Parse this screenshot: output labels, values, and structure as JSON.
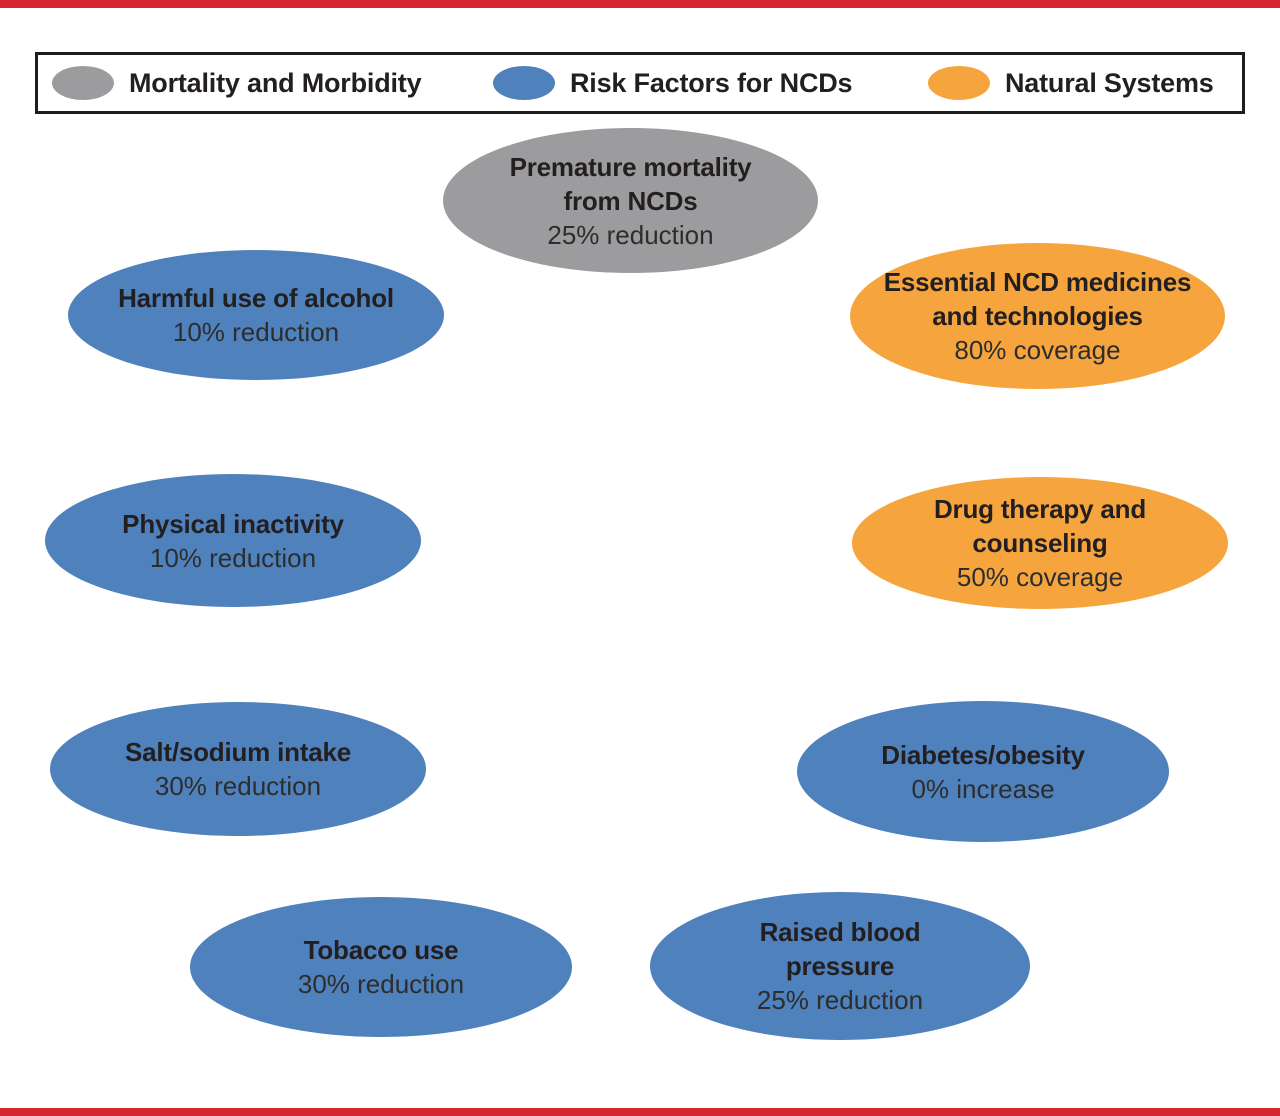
{
  "figure": {
    "background": "#ffffff",
    "rule_color": "#d7272f"
  },
  "legend": {
    "items": [
      {
        "label": "Mortality and Morbidity",
        "color": "#9c9c9e"
      },
      {
        "label": "Risk Factors for NCDs",
        "color": "#4f81bd"
      },
      {
        "label": "Natural Systems",
        "color": "#f6a53e"
      }
    ]
  },
  "nodes": [
    {
      "title": "Premature mortality\nfrom NCDs",
      "value": "25% reduction",
      "category": "Mortality and Morbidity",
      "color": "#9c9c9e"
    },
    {
      "title": "Harmful use of alcohol",
      "value": "10% reduction",
      "category": "Risk Factors for NCDs",
      "color": "#4f81bd"
    },
    {
      "title": "Essential NCD medicines\nand technologies",
      "value": "80% coverage",
      "category": "Natural Systems",
      "color": "#f6a53e"
    },
    {
      "title": "Physical inactivity",
      "value": "10% reduction",
      "category": "Risk Factors for NCDs",
      "color": "#4f81bd"
    },
    {
      "title": "Drug therapy and\ncounseling",
      "value": "50% coverage",
      "category": "Natural Systems",
      "color": "#f6a53e"
    },
    {
      "title": "Salt/sodium intake",
      "value": "30% reduction",
      "category": "Risk Factors for NCDs",
      "color": "#4f81bd"
    },
    {
      "title": "Diabetes/obesity",
      "value": "0% increase",
      "category": "Risk Factors for NCDs",
      "color": "#4f81bd"
    },
    {
      "title": "Tobacco use",
      "value": "30% reduction",
      "category": "Risk Factors for NCDs",
      "color": "#4f81bd"
    },
    {
      "title": "Raised blood\npressure",
      "value": "25% reduction",
      "category": "Risk Factors for NCDs",
      "color": "#4f81bd"
    }
  ]
}
